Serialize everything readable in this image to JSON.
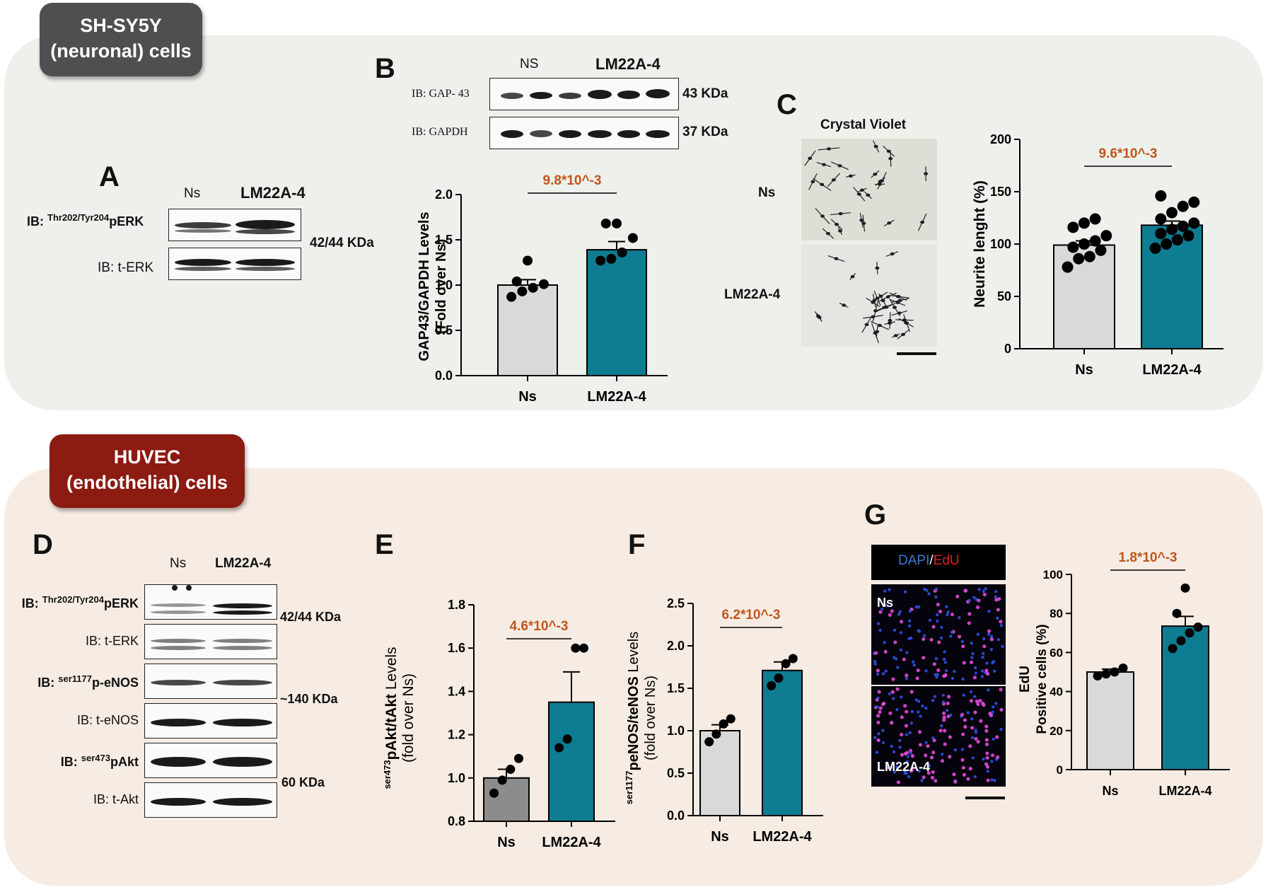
{
  "groups": {
    "top_line1": "SH-SY5Y",
    "top_line2": "(neuronal) cells",
    "bottom_line1": "HUVEC",
    "bottom_line2": "(endothelial) cells"
  },
  "panels": {
    "A": "A",
    "B": "B",
    "C": "C",
    "D": "D",
    "E": "E",
    "F": "F",
    "G": "G"
  },
  "blot_A": {
    "lanes": [
      "Ns",
      "LM22A-4"
    ],
    "rows": [
      {
        "pre": "IB: ",
        "sup": "Thr202/Tyr204",
        "main": "pERK"
      },
      {
        "pre": "IB: t-ERK",
        "sup": "",
        "main": ""
      }
    ],
    "size": "42/44 KDa"
  },
  "blot_B": {
    "lanes": [
      "NS",
      "LM22A-4"
    ],
    "rows": [
      "IB: GAP- 43",
      "IB: GAPDH"
    ],
    "sizes": [
      "43 KDa",
      "37 KDa"
    ]
  },
  "panel_C": {
    "title": "Crystal Violet",
    "rows": [
      "Ns",
      "LM22A-4"
    ]
  },
  "blot_D": {
    "lanes": [
      "Ns",
      "LM22A-4"
    ],
    "rows": [
      {
        "pre": "IB: ",
        "sup": "Thr202/Tyr204",
        "main": "pERK",
        "bold": true
      },
      {
        "pre": "IB: t-ERK",
        "sup": "",
        "main": "",
        "bold": false
      },
      {
        "pre": "IB: ",
        "sup": "ser1177",
        "main": "p-eNOS",
        "bold": true
      },
      {
        "pre": "IB: t-eNOS",
        "sup": "",
        "main": "",
        "bold": false
      },
      {
        "pre": "IB: ",
        "sup": "ser473",
        "main": "pAkt",
        "bold": true
      },
      {
        "pre": "IB: t-Akt",
        "sup": "",
        "main": "",
        "bold": false
      }
    ],
    "sizes": [
      "42/44 KDa",
      "~140 KDa",
      "60 KDa"
    ]
  },
  "panel_G": {
    "stain_dapi": "DAPI",
    "stain_sep": "/",
    "stain_edu": "EdU",
    "rows": [
      "Ns",
      "LM22A-4"
    ]
  },
  "colors": {
    "control_bar": "#d9d9d9",
    "treated_bar": "#0e7c91",
    "pvalue": "#c0561b",
    "dapi": "#3a7bd5",
    "edu": "#e02020"
  },
  "chart_data": [
    {
      "id": "B",
      "type": "bar",
      "categories": [
        "Ns",
        "LM22A-4"
      ],
      "values": [
        1.0,
        1.39
      ],
      "sem": [
        0.06,
        0.09
      ],
      "points": [
        [
          0.87,
          0.93,
          0.97,
          1.01,
          1.04,
          1.27
        ],
        [
          1.27,
          1.29,
          1.36,
          1.52,
          1.68,
          1.68
        ]
      ],
      "ylabel_line1": "GAP43/GAPDH Levels",
      "ylabel_line2": "(Fold over Ns)",
      "ylim": [
        0.0,
        2.0
      ],
      "yticks": [
        "0.0",
        "0.5",
        "1.0",
        "1.5",
        "2.0"
      ],
      "pvalue": "9.8*10^-3"
    },
    {
      "id": "C",
      "type": "bar",
      "categories": [
        "Ns",
        "LM22A-4"
      ],
      "values": [
        99,
        118
      ],
      "sem": [
        4,
        4
      ],
      "points": [
        [
          78,
          86,
          88,
          94,
          97,
          100,
          103,
          108,
          116,
          120,
          124
        ],
        [
          96,
          100,
          104,
          108,
          110,
          114,
          117,
          120,
          124,
          130,
          136,
          140,
          146
        ]
      ],
      "ylabel": "Neurite lenght (%)",
      "ylim": [
        0,
        200
      ],
      "yticks": [
        "0",
        "50",
        "100",
        "150",
        "200"
      ],
      "pvalue": "9.6*10^-3"
    },
    {
      "id": "E",
      "type": "bar",
      "categories": [
        "Ns",
        "LM22A-4"
      ],
      "values": [
        1.0,
        1.35
      ],
      "sem": [
        0.04,
        0.14
      ],
      "points": [
        [
          0.93,
          0.99,
          1.04,
          1.09
        ],
        [
          1.14,
          1.18,
          1.6,
          1.6
        ]
      ],
      "ylabel_sup": "ser473",
      "ylabel_bold": "pAkt/tAkt",
      "ylabel_rest": " Levels",
      "ylabel_line2": "(fold over Ns)",
      "ylim": [
        0.8,
        1.8
      ],
      "yticks": [
        "0.8",
        "1.0",
        "1.2",
        "1.4",
        "1.6",
        "1.8"
      ],
      "pvalue": "4.6*10^-3"
    },
    {
      "id": "F",
      "type": "bar",
      "categories": [
        "Ns",
        "LM22A-4"
      ],
      "values": [
        1.0,
        1.71
      ],
      "sem": [
        0.07,
        0.1
      ],
      "points": [
        [
          0.87,
          0.96,
          1.08,
          1.14
        ],
        [
          1.53,
          1.62,
          1.79,
          1.85
        ]
      ],
      "ylabel_sup": "ser1177",
      "ylabel_bold": "peNOS/teNOS",
      "ylabel_rest": " Levels",
      "ylabel_line2": "(fold over Ns)",
      "ylim": [
        0.0,
        2.5
      ],
      "yticks": [
        "0.0",
        "0.5",
        "1.0",
        "1.5",
        "2.0",
        "2.5"
      ],
      "pvalue": "6.2*10^-3"
    },
    {
      "id": "G",
      "type": "bar",
      "categories": [
        "Ns",
        "LM22A-4"
      ],
      "values": [
        50,
        73.5
      ],
      "sem": [
        1.5,
        5
      ],
      "points": [
        [
          48,
          49,
          50,
          52
        ],
        [
          62,
          66,
          70,
          73,
          80,
          93
        ]
      ],
      "ylabel_line1": "EdU",
      "ylabel_line2": "Positive cells (%)",
      "ylim": [
        0,
        100
      ],
      "yticks": [
        "0",
        "20",
        "40",
        "60",
        "80",
        "100"
      ],
      "pvalue": "1.8*10^-3"
    }
  ]
}
